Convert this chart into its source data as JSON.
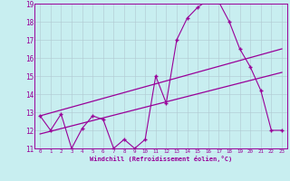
{
  "xlabel": "Windchill (Refroidissement éolien,°C)",
  "background_color": "#c8eef0",
  "line_color": "#990099",
  "grid_color": "#b0c8d0",
  "x": [
    0,
    1,
    2,
    3,
    4,
    5,
    6,
    7,
    8,
    9,
    10,
    11,
    12,
    13,
    14,
    15,
    16,
    17,
    18,
    19,
    20,
    21,
    22,
    23
  ],
  "y_main": [
    12.8,
    12.0,
    12.9,
    11.0,
    12.1,
    12.8,
    12.6,
    11.0,
    11.5,
    11.0,
    11.5,
    15.0,
    13.5,
    17.0,
    18.2,
    18.8,
    19.2,
    19.1,
    18.0,
    16.5,
    15.5,
    14.2,
    12.0,
    12.0
  ],
  "y_line1_start": 12.8,
  "y_line1_end": 16.5,
  "y_line2_start": 11.8,
  "y_line2_end": 15.2,
  "ylim": [
    11,
    19
  ],
  "xlim": [
    -0.5,
    23.5
  ],
  "yticks": [
    11,
    12,
    13,
    14,
    15,
    16,
    17,
    18,
    19
  ],
  "xticks": [
    0,
    1,
    2,
    3,
    4,
    5,
    6,
    7,
    8,
    9,
    10,
    11,
    12,
    13,
    14,
    15,
    16,
    17,
    18,
    19,
    20,
    21,
    22,
    23
  ]
}
